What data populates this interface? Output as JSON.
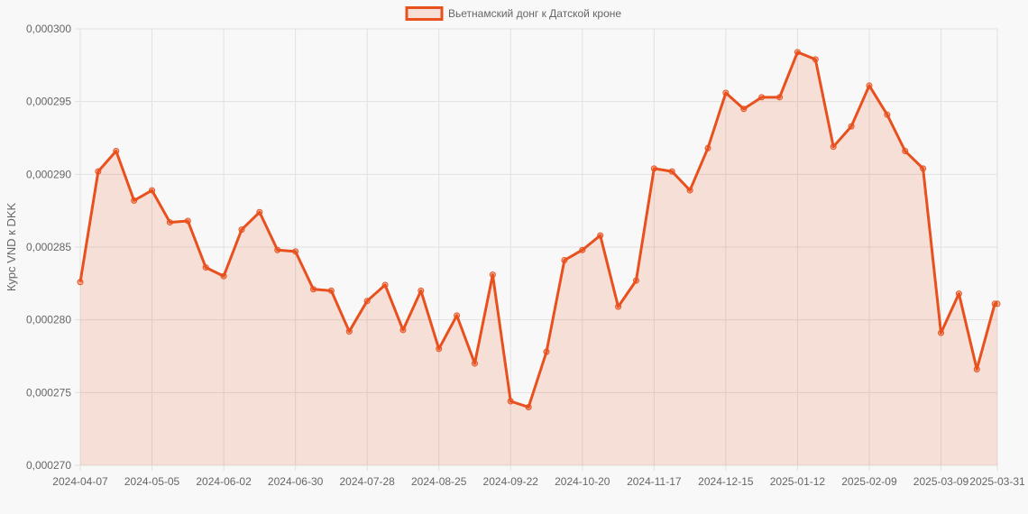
{
  "chart_data": {
    "type": "area",
    "title": "",
    "xlabel": "",
    "ylabel": "Курс VND к DKK",
    "series": [
      {
        "name": "Вьетнамский донг к Датской кроне",
        "color": "#e8501e",
        "fill": "rgba(232,80,30,0.15)",
        "x": [
          "2024-04-07",
          "2024-04-14",
          "2024-04-21",
          "2024-04-28",
          "2024-05-05",
          "2024-05-12",
          "2024-05-19",
          "2024-05-26",
          "2024-06-02",
          "2024-06-09",
          "2024-06-16",
          "2024-06-23",
          "2024-06-30",
          "2024-07-07",
          "2024-07-14",
          "2024-07-21",
          "2024-07-28",
          "2024-08-04",
          "2024-08-11",
          "2024-08-18",
          "2024-08-25",
          "2024-09-01",
          "2024-09-08",
          "2024-09-15",
          "2024-09-22",
          "2024-09-29",
          "2024-10-06",
          "2024-10-13",
          "2024-10-20",
          "2024-10-27",
          "2024-11-03",
          "2024-11-10",
          "2024-11-17",
          "2024-11-24",
          "2024-12-01",
          "2024-12-08",
          "2024-12-15",
          "2024-12-22",
          "2024-12-29",
          "2025-01-05",
          "2025-01-12",
          "2025-01-19",
          "2025-01-26",
          "2025-02-02",
          "2025-02-09",
          "2025-02-16",
          "2025-02-23",
          "2025-03-02",
          "2025-03-09",
          "2025-03-16",
          "2025-03-23",
          "2025-03-30",
          "2025-03-31"
        ],
        "values": [
          0.0002826,
          0.0002902,
          0.0002916,
          0.0002882,
          0.0002889,
          0.0002867,
          0.0002868,
          0.0002836,
          0.000283,
          0.0002862,
          0.0002874,
          0.0002848,
          0.0002847,
          0.0002821,
          0.000282,
          0.0002792,
          0.0002813,
          0.0002824,
          0.0002793,
          0.000282,
          0.000278,
          0.0002803,
          0.000277,
          0.0002831,
          0.0002744,
          0.000274,
          0.0002778,
          0.0002841,
          0.0002848,
          0.0002858,
          0.0002809,
          0.0002827,
          0.0002904,
          0.0002902,
          0.0002889,
          0.0002918,
          0.0002956,
          0.0002945,
          0.0002953,
          0.0002953,
          0.0002984,
          0.0002979,
          0.0002919,
          0.0002933,
          0.0002961,
          0.0002941,
          0.0002916,
          0.0002904,
          0.0002791,
          0.0002818,
          0.0002766,
          0.0002811,
          0.0002811
        ]
      }
    ],
    "x_ticks": [
      "2024-04-07",
      "2024-05-05",
      "2024-06-02",
      "2024-06-30",
      "2024-07-28",
      "2024-08-25",
      "2024-09-22",
      "2024-10-20",
      "2024-11-17",
      "2024-12-15",
      "2025-01-12",
      "2025-02-09",
      "2025-03-09",
      "2025-03-31"
    ],
    "y_ticks": [
      "0,000270",
      "0,000275",
      "0,000280",
      "0,000285",
      "0,000290",
      "0,000295",
      "0,000300"
    ],
    "ylim": [
      0.00027,
      0.0003
    ],
    "grid": true,
    "legend_position": "top-center"
  }
}
